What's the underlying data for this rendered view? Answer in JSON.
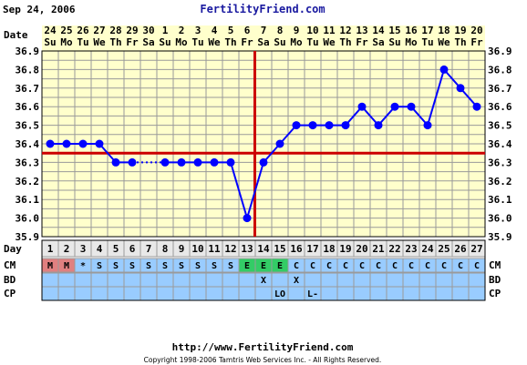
{
  "header": {
    "date_text": "Sep 24, 2006",
    "site_title": "FertilityFriend.com"
  },
  "footer": {
    "url": "http://www.FertilityFriend.com",
    "copyright": "Copyright 1998-2006 Tamtris Web Services Inc. - All Rights Reserved."
  },
  "chart_data": {
    "type": "line",
    "xlabel": "Date",
    "row_labels": {
      "day": "Day",
      "cm": "CM",
      "bd": "BD",
      "cp": "CP"
    },
    "dates": [
      "24",
      "25",
      "26",
      "27",
      "28",
      "29",
      "30",
      "1",
      "2",
      "3",
      "4",
      "5",
      "6",
      "7",
      "8",
      "9",
      "10",
      "11",
      "12",
      "13",
      "14",
      "15",
      "16",
      "17",
      "18",
      "19",
      "20"
    ],
    "weekdays": [
      "Su",
      "Mo",
      "Tu",
      "We",
      "Th",
      "Fr",
      "Sa",
      "Su",
      "Mo",
      "Tu",
      "We",
      "Th",
      "Fr",
      "Sa",
      "Su",
      "Mo",
      "Tu",
      "We",
      "Th",
      "Fr",
      "Sa",
      "Su",
      "Mo",
      "Tu",
      "We",
      "Th",
      "Fr"
    ],
    "cycle_days": [
      "1",
      "2",
      "3",
      "4",
      "5",
      "6",
      "7",
      "8",
      "9",
      "10",
      "11",
      "12",
      "13",
      "14",
      "15",
      "16",
      "17",
      "18",
      "19",
      "20",
      "21",
      "22",
      "23",
      "24",
      "25",
      "26",
      "27"
    ],
    "temperatures": [
      36.4,
      36.4,
      36.4,
      36.4,
      36.3,
      36.3,
      null,
      36.3,
      36.3,
      36.3,
      36.3,
      36.3,
      36.0,
      36.3,
      36.4,
      36.5,
      36.5,
      36.5,
      36.5,
      36.6,
      36.5,
      36.6,
      36.6,
      36.5,
      36.8,
      36.7,
      36.6
    ],
    "dotted_gaps": [
      [
        5,
        7
      ]
    ],
    "y_ticks": [
      "35.9",
      "36.0",
      "36.1",
      "36.2",
      "36.3",
      "36.4",
      "36.5",
      "36.6",
      "36.7",
      "36.8",
      "36.9"
    ],
    "ylim": [
      35.9,
      36.9
    ],
    "coverline": 36.35,
    "ovulation_day": "14",
    "cervical_mucus": [
      "M",
      "M",
      "*",
      "S",
      "S",
      "S",
      "S",
      "S",
      "S",
      "S",
      "S",
      "S",
      "E",
      "E",
      "E",
      "C",
      "C",
      "C",
      "C",
      "C",
      "C",
      "C",
      "C",
      "C",
      "C",
      "C",
      "C"
    ],
    "bd": [
      "",
      "",
      "",
      "",
      "",
      "",
      "",
      "",
      "",
      "",
      "",
      "",
      "",
      "X",
      "",
      "X",
      "",
      "",
      "",
      "",
      "",
      "",
      "",
      "",
      "",
      "",
      ""
    ],
    "cervical_position": [
      "",
      "",
      "",
      "",
      "",
      "",
      "",
      "",
      "",
      "",
      "",
      "",
      "",
      "",
      "LO",
      "",
      "L-",
      "",
      "",
      "",
      "",
      "",
      "",
      "",
      "",
      "",
      ""
    ],
    "colors": {
      "plot_bg": "#ffffcc",
      "grid": "#9a9a9a",
      "line": "#0000ff",
      "coverline": "#cc0000",
      "cm_menses": "#e08080",
      "cm_egg_white": "#33cc66",
      "cm_default": "#99ccff",
      "cycle_day_bg": "#e8e8e8",
      "border": "#000000"
    }
  }
}
